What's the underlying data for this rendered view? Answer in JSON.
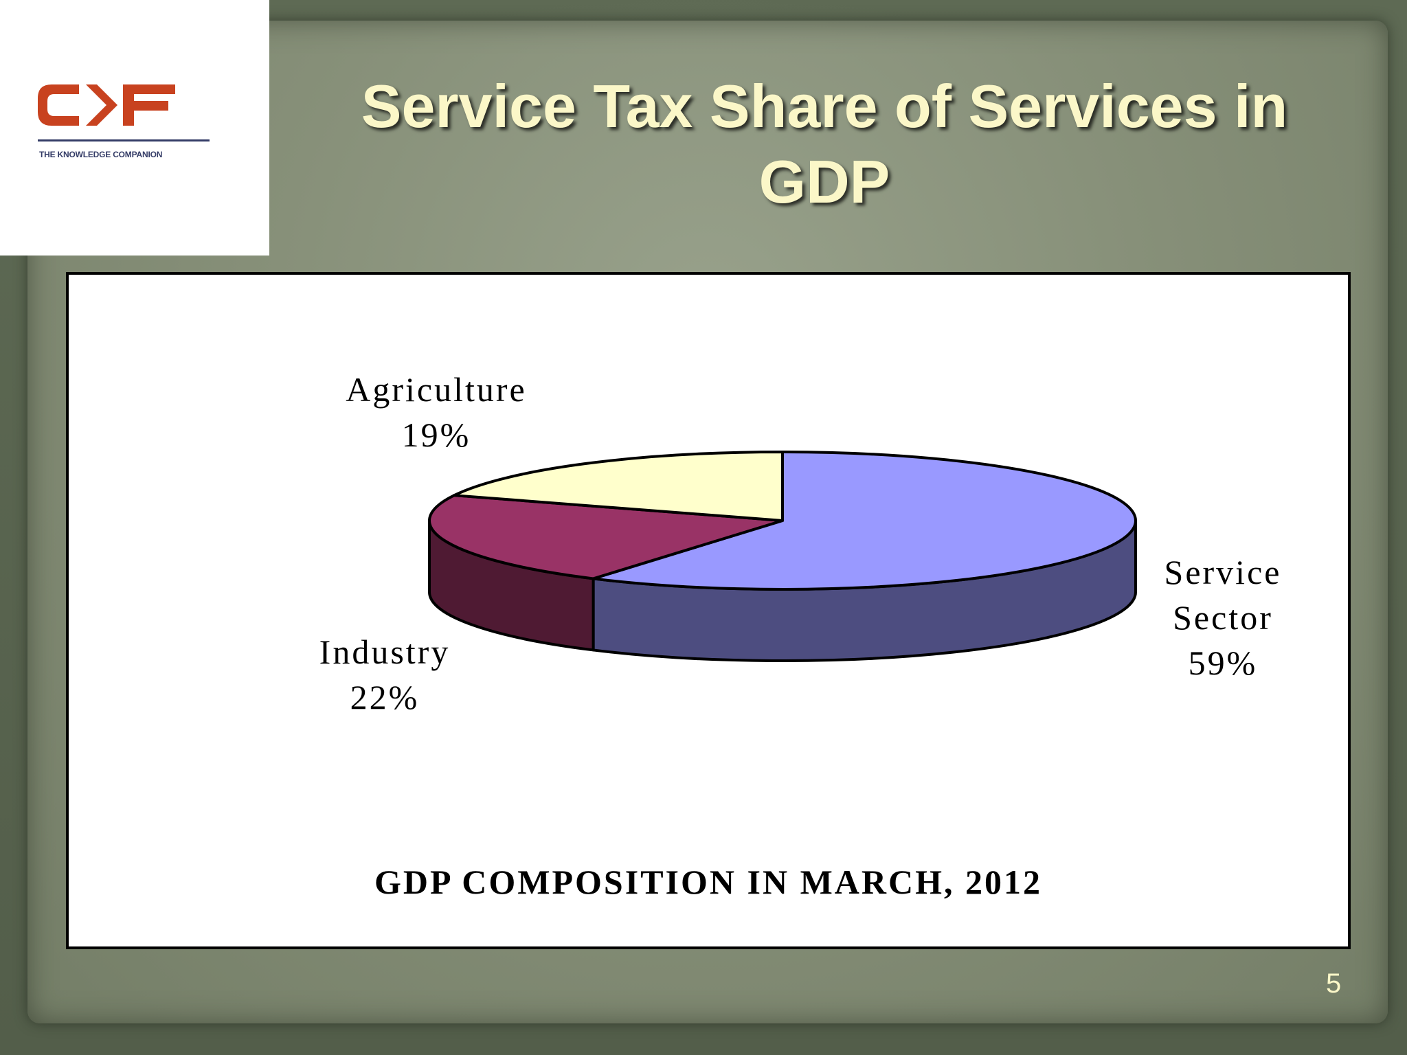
{
  "logo": {
    "wordmark": "CKF",
    "tagline": "THE KNOWLEDGE COMPANION"
  },
  "slide": {
    "title_line1": "Service Tax Share of Services in",
    "title_line2": "GDP",
    "page_number": "5"
  },
  "colors": {
    "service_top": "#9999ff",
    "service_side": "#4d4d80",
    "industry_top": "#993366",
    "industry_side": "#4f1a33",
    "agriculture_top": "#ffffcc",
    "title_text": "#fbf7c8"
  },
  "chart_data": {
    "type": "pie",
    "title": "GDP COMPOSITION IN MARCH, 2012",
    "style": "3d",
    "slices": [
      {
        "label": "Service Sector",
        "value": 59,
        "display": "59%"
      },
      {
        "label": "Industry",
        "value": 22,
        "display": "22%"
      },
      {
        "label": "Agriculture",
        "value": 19,
        "display": "19%"
      }
    ]
  }
}
